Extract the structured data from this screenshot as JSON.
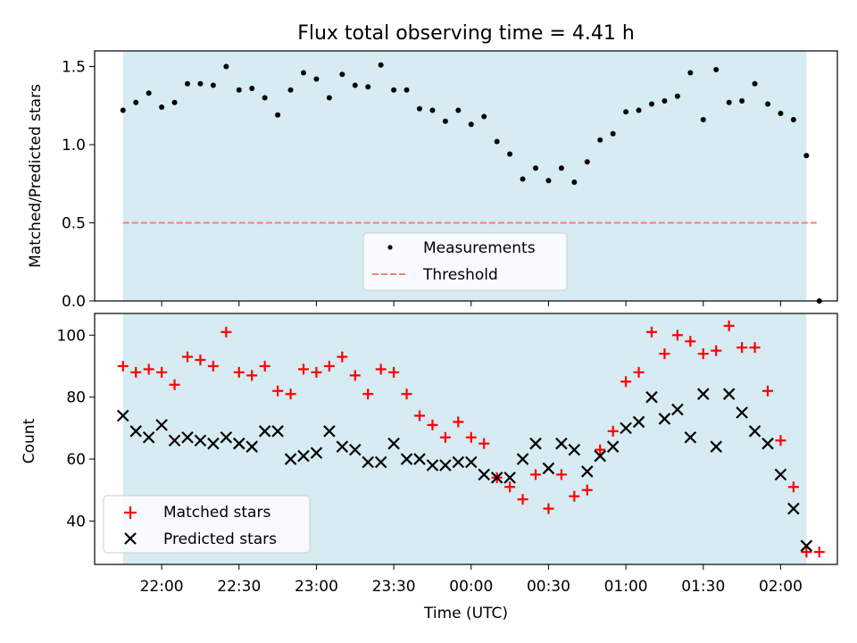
{
  "chart_data": [
    {
      "type": "scatter",
      "title": "Flux total observing time = 4.41 h",
      "xlabel": "",
      "ylabel": "Matched/Predicted stars",
      "ylim": [
        0,
        1.6
      ],
      "yticks": [
        "0.0",
        "0.5",
        "1.0",
        "1.5"
      ],
      "highlight_span": {
        "from": "21:45",
        "to": "02:10",
        "color": "#add8e6"
      },
      "legend_position": "lower center",
      "series": [
        {
          "name": "Measurements",
          "marker": "dot",
          "color": "#000000",
          "x": [
            "21:45",
            "21:50",
            "21:55",
            "22:00",
            "22:05",
            "22:10",
            "22:15",
            "22:20",
            "22:25",
            "22:30",
            "22:35",
            "22:40",
            "22:45",
            "22:50",
            "22:55",
            "23:00",
            "23:05",
            "23:10",
            "23:15",
            "23:20",
            "23:25",
            "23:30",
            "23:35",
            "23:40",
            "23:45",
            "23:50",
            "23:55",
            "00:00",
            "00:05",
            "00:10",
            "00:15",
            "00:20",
            "00:25",
            "00:30",
            "00:35",
            "00:40",
            "00:45",
            "00:50",
            "00:55",
            "01:00",
            "01:05",
            "01:10",
            "01:15",
            "01:20",
            "01:25",
            "01:30",
            "01:35",
            "01:40",
            "01:45",
            "01:50",
            "01:55",
            "02:00",
            "02:05",
            "02:10",
            "02:15"
          ],
          "y": [
            1.22,
            1.27,
            1.33,
            1.24,
            1.27,
            1.39,
            1.39,
            1.38,
            1.5,
            1.35,
            1.36,
            1.3,
            1.19,
            1.35,
            1.46,
            1.42,
            1.3,
            1.45,
            1.38,
            1.37,
            1.51,
            1.35,
            1.35,
            1.23,
            1.22,
            1.15,
            1.22,
            1.13,
            1.18,
            1.02,
            0.94,
            0.78,
            0.85,
            0.77,
            0.85,
            0.76,
            0.89,
            1.03,
            1.07,
            1.21,
            1.22,
            1.26,
            1.28,
            1.31,
            1.46,
            1.16,
            1.48,
            1.27,
            1.28,
            1.39,
            1.26,
            1.2,
            1.16,
            0.93,
            0.0
          ]
        },
        {
          "name": "Threshold",
          "type": "line",
          "style": "dashed",
          "color": "#f08080",
          "x": [
            "21:45",
            "02:15"
          ],
          "y": [
            0.5,
            0.5
          ]
        }
      ]
    },
    {
      "type": "scatter",
      "title": "",
      "xlabel": "Time (UTC)",
      "ylabel": "Count",
      "ylim": [
        26,
        107
      ],
      "yticks": [
        "40",
        "60",
        "80",
        "100"
      ],
      "xticks": [
        "22:00",
        "22:30",
        "23:00",
        "23:30",
        "00:00",
        "00:30",
        "01:00",
        "01:30",
        "02:00"
      ],
      "highlight_span": {
        "from": "21:45",
        "to": "02:10",
        "color": "#add8e6"
      },
      "legend_position": "lower left",
      "series": [
        {
          "name": "Matched stars",
          "marker": "plus",
          "color": "#ff0000",
          "x": [
            "21:45",
            "21:50",
            "21:55",
            "22:00",
            "22:05",
            "22:10",
            "22:15",
            "22:20",
            "22:25",
            "22:30",
            "22:35",
            "22:40",
            "22:45",
            "22:50",
            "22:55",
            "23:00",
            "23:05",
            "23:10",
            "23:15",
            "23:20",
            "23:25",
            "23:30",
            "23:35",
            "23:40",
            "23:45",
            "23:50",
            "23:55",
            "00:00",
            "00:05",
            "00:10",
            "00:15",
            "00:20",
            "00:25",
            "00:30",
            "00:35",
            "00:40",
            "00:45",
            "00:50",
            "00:55",
            "01:00",
            "01:05",
            "01:10",
            "01:15",
            "01:20",
            "01:25",
            "01:30",
            "01:35",
            "01:40",
            "01:45",
            "01:50",
            "01:55",
            "02:00",
            "02:05",
            "02:10",
            "02:15"
          ],
          "y": [
            90,
            88,
            89,
            88,
            84,
            93,
            92,
            90,
            101,
            88,
            87,
            90,
            82,
            81,
            89,
            88,
            90,
            93,
            87,
            81,
            89,
            88,
            81,
            74,
            71,
            67,
            72,
            67,
            65,
            54,
            51,
            47,
            55,
            44,
            55,
            48,
            50,
            63,
            69,
            85,
            88,
            101,
            94,
            100,
            98,
            94,
            95,
            103,
            96,
            96,
            82,
            66,
            51,
            30,
            30
          ]
        },
        {
          "name": "Predicted stars",
          "marker": "x",
          "color": "#000000",
          "x": [
            "21:45",
            "21:50",
            "21:55",
            "22:00",
            "22:05",
            "22:10",
            "22:15",
            "22:20",
            "22:25",
            "22:30",
            "22:35",
            "22:40",
            "22:45",
            "22:50",
            "22:55",
            "23:00",
            "23:05",
            "23:10",
            "23:15",
            "23:20",
            "23:25",
            "23:30",
            "23:35",
            "23:40",
            "23:45",
            "23:50",
            "23:55",
            "00:00",
            "00:05",
            "00:10",
            "00:15",
            "00:20",
            "00:25",
            "00:30",
            "00:35",
            "00:40",
            "00:45",
            "00:50",
            "00:55",
            "01:00",
            "01:05",
            "01:10",
            "01:15",
            "01:20",
            "01:25",
            "01:30",
            "01:35",
            "01:40",
            "01:45",
            "01:50",
            "01:55",
            "02:00",
            "02:05",
            "02:10"
          ],
          "y": [
            74,
            69,
            67,
            71,
            66,
            67,
            66,
            65,
            67,
            65,
            64,
            69,
            69,
            60,
            61,
            62,
            69,
            64,
            63,
            59,
            59,
            65,
            60,
            60,
            58,
            58,
            59,
            59,
            55,
            54,
            54,
            60,
            65,
            57,
            65,
            63,
            56,
            61,
            64,
            70,
            72,
            80,
            73,
            76,
            67,
            81,
            64,
            81,
            75,
            69,
            65,
            55,
            44,
            32
          ]
        }
      ]
    }
  ]
}
